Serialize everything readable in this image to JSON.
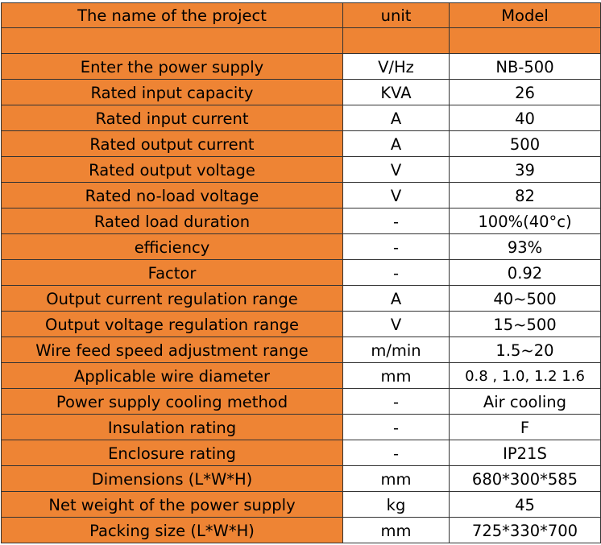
{
  "header": {
    "name": "The name of the project",
    "unit": "unit",
    "model": "Model"
  },
  "rows": [
    {
      "name": "Enter the power supply",
      "unit": "V/Hz",
      "model": "NB-500"
    },
    {
      "name": "Rated input capacity",
      "unit": "KVA",
      "model": "26"
    },
    {
      "name": "Rated input current",
      "unit": "A",
      "model": "40"
    },
    {
      "name": "Rated output current",
      "unit": "A",
      "model": "500"
    },
    {
      "name": "Rated output voltage",
      "unit": "V",
      "model": "39"
    },
    {
      "name": "Rated no-load voltage",
      "unit": "V",
      "model": "82"
    },
    {
      "name": "Rated load duration",
      "unit": "-",
      "model": "100%(40°c)"
    },
    {
      "name": "efficiency",
      "unit": "-",
      "model": "93%"
    },
    {
      "name": "Factor",
      "unit": "-",
      "model": "0.92"
    },
    {
      "name": "Output current regulation range",
      "unit": "A",
      "model": "40~500"
    },
    {
      "name": "Output voltage regulation range",
      "unit": "V",
      "model": "15~500"
    },
    {
      "name": "Wire feed speed adjustment range",
      "unit": "m/min",
      "model": "1.5~20"
    },
    {
      "name": "Applicable wire diameter",
      "unit": "mm",
      "model": "0.8 , 1.0, 1.2 1.6"
    },
    {
      "name": "Power supply cooling method",
      "unit": "-",
      "model": "Air cooling"
    },
    {
      "name": "Insulation rating",
      "unit": "-",
      "model": "F"
    },
    {
      "name": "Enclosure rating",
      "unit": "-",
      "model": "IP21S"
    },
    {
      "name": "Dimensions (L*W*H)",
      "unit": "mm",
      "model": "680*300*585"
    },
    {
      "name": "Net weight of the power supply",
      "unit": "kg",
      "model": "45"
    },
    {
      "name": "Packing size (L*W*H)",
      "unit": "mm",
      "model": "725*330*700"
    }
  ],
  "colors": {
    "orange": "#EE8434",
    "white": "#FFFFFF",
    "border": "#333333"
  }
}
